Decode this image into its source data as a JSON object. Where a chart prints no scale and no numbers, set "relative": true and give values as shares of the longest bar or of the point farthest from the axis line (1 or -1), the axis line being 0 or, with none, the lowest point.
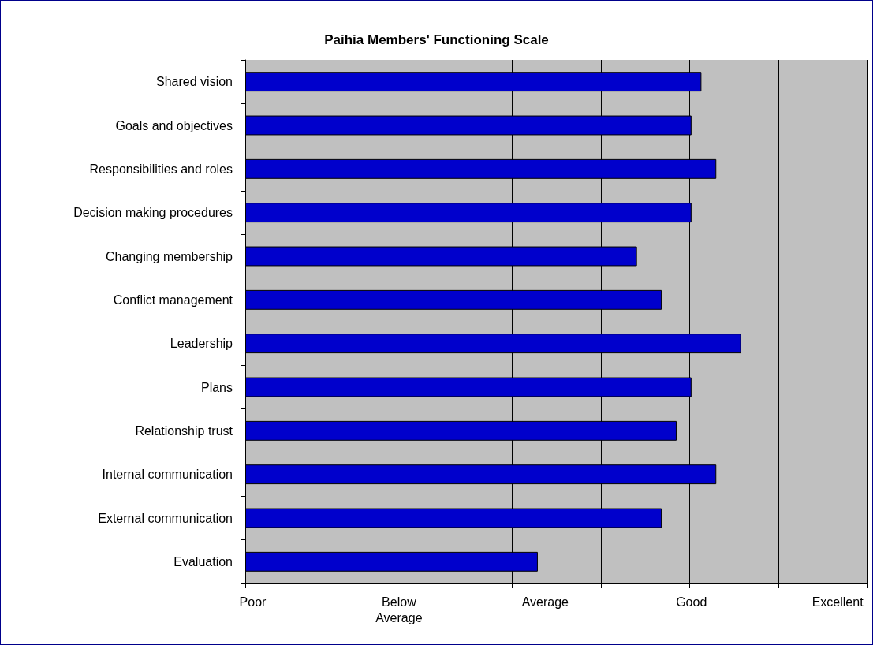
{
  "chart_data": {
    "type": "bar",
    "orientation": "horizontal",
    "relative": true,
    "title": "Paihia Members' Functioning Scale",
    "categories": [
      "Shared vision",
      "Goals and objectives",
      "Responsibilities and roles",
      "Decision making procedures",
      "Changing membership",
      "Conflict management",
      "Leadership",
      "Plans",
      "Relationship trust",
      "Internal communication",
      "External communication",
      "Evaluation"
    ],
    "values": [
      0.92,
      0.9,
      0.95,
      0.9,
      0.79,
      0.84,
      1,
      0.9,
      0.87,
      0.95,
      0.84,
      0.59
    ],
    "color": "#0000cc",
    "annotations": [
      "Poor",
      "Below\nAverage",
      "Average",
      "Good",
      "Excellent"
    ],
    "grid": "x"
  }
}
